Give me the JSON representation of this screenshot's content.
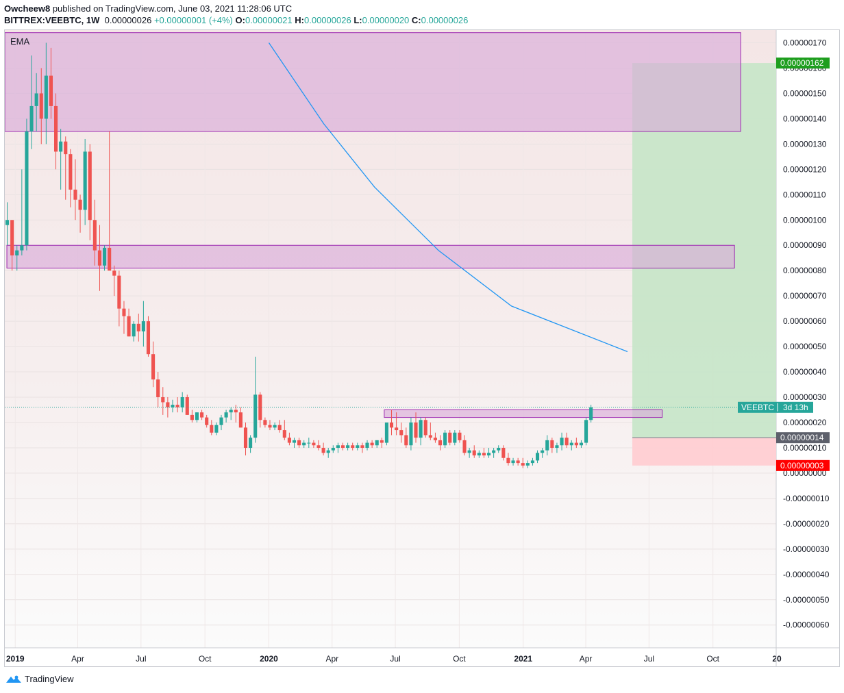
{
  "header": {
    "author": "Owcheew8",
    "published": "published on TradingView.com, June 03, 2021 11:28:06 UTC",
    "symbol": "BITTREX:VEEBTC, 1W",
    "last": "0.00000026",
    "change": "+0.00000001 (+4%)",
    "o_label": "O:",
    "o_value": "0.00000021",
    "h_label": "H:",
    "h_value": "0.00000026",
    "l_label": "L:",
    "l_value": "0.00000020",
    "c_label": "C:",
    "c_value": "0.00000026"
  },
  "indicator_label": "EMA",
  "footer": {
    "brand": "TradingView",
    "logo_icon": "tradingview-logo-icon"
  },
  "colors": {
    "up": "#26a69a",
    "down": "#ef5350",
    "ema": "#2196f3",
    "zone_fill": "#d9a9d9",
    "zone_border": "#9c27b0",
    "target_fill": "#c8e6c9",
    "stop_fill": "#ffcdd2",
    "target_badge": "#1e9e1e",
    "stop_badge": "#ff0000",
    "entry_badge": "#5d606b",
    "price_badge": "#26a69a"
  },
  "chart_data": {
    "type": "candlestick",
    "timeframe": "1W",
    "x_range": [
      "2018-12-17",
      "2021-12-31"
    ],
    "y_range": [
      -6.9e-07,
      1.75e-06
    ],
    "y_ticks": [
      "0.00000170",
      "0.00000160",
      "0.00000150",
      "0.00000140",
      "0.00000130",
      "0.00000120",
      "0.00000110",
      "0.00000100",
      "0.00000090",
      "0.00000080",
      "0.00000070",
      "0.00000060",
      "0.00000050",
      "0.00000040",
      "0.00000030",
      "0.00000020",
      "0.00000010",
      "0.00000000",
      "-0.00000010",
      "-0.00000020",
      "-0.00000030",
      "-0.00000040",
      "-0.00000050",
      "-0.00000060"
    ],
    "y_tick_values": [
      170,
      160,
      150,
      140,
      130,
      120,
      110,
      100,
      90,
      80,
      70,
      60,
      50,
      40,
      30,
      20,
      10,
      0,
      -10,
      -20,
      -30,
      -40,
      -50,
      -60
    ],
    "y_unit_scale": 1e-08,
    "x_ticks": [
      {
        "label": "2019",
        "date": "2019-01-01",
        "bold": true
      },
      {
        "label": "Apr",
        "date": "2019-04-01"
      },
      {
        "label": "Jul",
        "date": "2019-07-01"
      },
      {
        "label": "Oct",
        "date": "2019-10-01"
      },
      {
        "label": "2020",
        "date": "2020-01-01",
        "bold": true
      },
      {
        "label": "Apr",
        "date": "2020-04-01"
      },
      {
        "label": "Jul",
        "date": "2020-07-01"
      },
      {
        "label": "Oct",
        "date": "2020-10-01"
      },
      {
        "label": "2021",
        "date": "2021-01-01",
        "bold": true
      },
      {
        "label": "Apr",
        "date": "2021-04-01"
      },
      {
        "label": "Jul",
        "date": "2021-07-01"
      },
      {
        "label": "Oct",
        "date": "2021-10-01"
      },
      {
        "label": "20",
        "date": "2022-01-01",
        "bold": true
      }
    ],
    "candles_start": "2018-12-17",
    "candles_ohlc_1e-8": [
      [
        98,
        107,
        90,
        100
      ],
      [
        100,
        98,
        80,
        86
      ],
      [
        86,
        90,
        80,
        88
      ],
      [
        88,
        120,
        86,
        90
      ],
      [
        90,
        140,
        88,
        135
      ],
      [
        135,
        165,
        128,
        145
      ],
      [
        145,
        158,
        135,
        150
      ],
      [
        150,
        160,
        130,
        140
      ],
      [
        140,
        170,
        130,
        157
      ],
      [
        157,
        168,
        140,
        145
      ],
      [
        145,
        150,
        120,
        127
      ],
      [
        127,
        136,
        112,
        131
      ],
      [
        131,
        133,
        108,
        126
      ],
      [
        126,
        128,
        105,
        112
      ],
      [
        112,
        124,
        100,
        108
      ],
      [
        108,
        110,
        95,
        104
      ],
      [
        104,
        132,
        98,
        127
      ],
      [
        127,
        130,
        92,
        100
      ],
      [
        100,
        108,
        82,
        88
      ],
      [
        88,
        98,
        72,
        82
      ],
      [
        82,
        90,
        80,
        89
      ],
      [
        89,
        135,
        82,
        80
      ],
      [
        80,
        82,
        70,
        78
      ],
      [
        78,
        80,
        58,
        65
      ],
      [
        65,
        68,
        55,
        62
      ],
      [
        62,
        65,
        54,
        54
      ],
      [
        54,
        60,
        52,
        59
      ],
      [
        59,
        63,
        52,
        56
      ],
      [
        56,
        68,
        50,
        60
      ],
      [
        60,
        62,
        46,
        47
      ],
      [
        47,
        52,
        34,
        37
      ],
      [
        37,
        40,
        26,
        30
      ],
      [
        30,
        34,
        23,
        28
      ],
      [
        28,
        30,
        22,
        26
      ],
      [
        26,
        29,
        24,
        27
      ],
      [
        27,
        30,
        24,
        26
      ],
      [
        26,
        32,
        24,
        30
      ],
      [
        30,
        31,
        23,
        23
      ],
      [
        23,
        25,
        20,
        21
      ],
      [
        21,
        24,
        20,
        24
      ],
      [
        24,
        25,
        21,
        22
      ],
      [
        22,
        23,
        18,
        19
      ],
      [
        19,
        21,
        15,
        16
      ],
      [
        16,
        20,
        15,
        19
      ],
      [
        19,
        23,
        17,
        22
      ],
      [
        22,
        25,
        20,
        24
      ],
      [
        24,
        26,
        21,
        25
      ],
      [
        25,
        27,
        20,
        24
      ],
      [
        24,
        26,
        18,
        18
      ],
      [
        18,
        20,
        7,
        10
      ],
      [
        10,
        15,
        8,
        14
      ],
      [
        14,
        46,
        12,
        31
      ],
      [
        31,
        32,
        18,
        21
      ],
      [
        21,
        22,
        18,
        19
      ],
      [
        19,
        21,
        17,
        18
      ],
      [
        18,
        20,
        17,
        19
      ],
      [
        19,
        21,
        16,
        17
      ],
      [
        17,
        21,
        13,
        14
      ],
      [
        14,
        16,
        11,
        12
      ],
      [
        12,
        14,
        10,
        13
      ],
      [
        13,
        14,
        10,
        11
      ],
      [
        11,
        13,
        10,
        12
      ],
      [
        12,
        14,
        10,
        12
      ],
      [
        12,
        13,
        10,
        11
      ],
      [
        11,
        13,
        9,
        10
      ],
      [
        10,
        12,
        7,
        8
      ],
      [
        8,
        10,
        6,
        9
      ],
      [
        9,
        11,
        8,
        10
      ],
      [
        10,
        12,
        8,
        11
      ],
      [
        11,
        12,
        9,
        10
      ],
      [
        10,
        12,
        9,
        11
      ],
      [
        11,
        12,
        9,
        10
      ],
      [
        10,
        12,
        9,
        11
      ],
      [
        11,
        12,
        8,
        10
      ],
      [
        10,
        13,
        9,
        12
      ],
      [
        12,
        13,
        10,
        11
      ],
      [
        11,
        13,
        10,
        13
      ],
      [
        13,
        14,
        10,
        12
      ],
      [
        12,
        15,
        11,
        20
      ],
      [
        20,
        25,
        15,
        18
      ],
      [
        18,
        24,
        15,
        17
      ],
      [
        17,
        20,
        12,
        15
      ],
      [
        15,
        18,
        10,
        11
      ],
      [
        11,
        22,
        9,
        20
      ],
      [
        20,
        24,
        12,
        14
      ],
      [
        14,
        22,
        11,
        21
      ],
      [
        21,
        22,
        14,
        15
      ],
      [
        15,
        20,
        13,
        14
      ],
      [
        14,
        16,
        12,
        13
      ],
      [
        13,
        15,
        9,
        11
      ],
      [
        11,
        17,
        10,
        16
      ],
      [
        16,
        17,
        11,
        12
      ],
      [
        12,
        17,
        11,
        16
      ],
      [
        16,
        17,
        12,
        13
      ],
      [
        13,
        15,
        7,
        8
      ],
      [
        8,
        10,
        6,
        9
      ],
      [
        9,
        11,
        6,
        7
      ],
      [
        7,
        9,
        6,
        8
      ],
      [
        8,
        10,
        6,
        7
      ],
      [
        7,
        10,
        6,
        8
      ],
      [
        8,
        10,
        6,
        9
      ],
      [
        9,
        11,
        8,
        10
      ],
      [
        10,
        11,
        5,
        6
      ],
      [
        6,
        8,
        3,
        4
      ],
      [
        4,
        6,
        3,
        5
      ],
      [
        5,
        6,
        3,
        4
      ],
      [
        4,
        6,
        2,
        3
      ],
      [
        3,
        5,
        2,
        4
      ],
      [
        4,
        6,
        3,
        5
      ],
      [
        5,
        9,
        4,
        8
      ],
      [
        8,
        10,
        6,
        9
      ],
      [
        9,
        15,
        7,
        13
      ],
      [
        13,
        14,
        8,
        10
      ],
      [
        10,
        12,
        8,
        11
      ],
      [
        11,
        16,
        9,
        14
      ],
      [
        14,
        16,
        10,
        11
      ],
      [
        11,
        13,
        9,
        12
      ],
      [
        12,
        14,
        10,
        11
      ],
      [
        11,
        13,
        10,
        12
      ],
      [
        12,
        22,
        11,
        21
      ],
      [
        21,
        27,
        20,
        26
      ]
    ],
    "ema_curve": [
      {
        "date": "2020-01-01",
        "value": 1.7e-06
      },
      {
        "date": "2020-03-20",
        "value": 1.38e-06
      },
      {
        "date": "2020-06-01",
        "value": 1.13e-06
      },
      {
        "date": "2020-09-01",
        "value": 8.8e-07
      },
      {
        "date": "2020-12-15",
        "value": 6.6e-07
      },
      {
        "date": "2021-05-31",
        "value": 4.8e-07
      }
    ],
    "zones": [
      {
        "name": "upper-supply-zone",
        "start": "2018-12-17",
        "end": "2021-11-10",
        "top": 1.74e-06,
        "bottom": 1.35e-06
      },
      {
        "name": "middle-zone",
        "start": "2018-12-20",
        "end": "2021-11-01",
        "top": 9e-07,
        "bottom": 8.1e-07
      },
      {
        "name": "breakout-zone",
        "start": "2020-06-15",
        "end": "2021-07-20",
        "top": 2.5e-07,
        "bottom": 2.2e-07
      }
    ],
    "position": {
      "start": "2021-06-07",
      "end": "2021-12-31",
      "target": 1.62e-06,
      "entry": 1.4e-07,
      "stop": 3e-08,
      "target_label": "0.00000162",
      "entry_label": "0.00000014",
      "stop_label": "0.00000003"
    },
    "current_price": 2.6e-07,
    "symbol_badge": "VEEBTC",
    "countdown": "3d 13h"
  }
}
